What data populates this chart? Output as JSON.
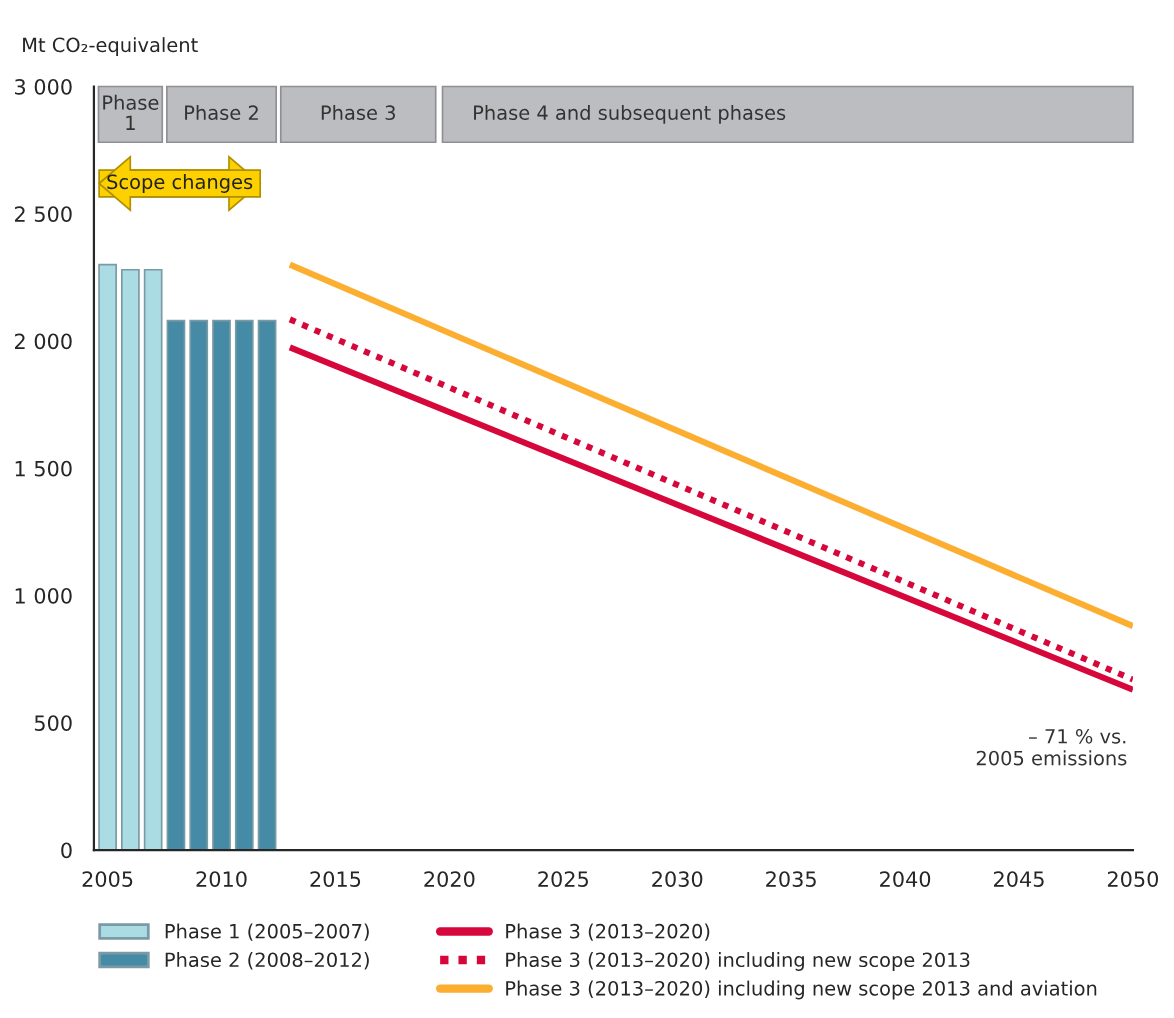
{
  "chart_data": {
    "type": "bar",
    "ylabel": "Mt CO₂-equivalent",
    "xlim": [
      2004.4,
      2050
    ],
    "xticks": [
      2005,
      2010,
      2015,
      2020,
      2025,
      2030,
      2035,
      2040,
      2045,
      2050
    ],
    "ylim": [
      0,
      3000
    ],
    "yticks": [
      0,
      {
        "value": 500,
        "label": "500"
      },
      {
        "value": 1000,
        "label": "1 000"
      },
      {
        "value": 1500,
        "label": "1 500"
      },
      {
        "value": 2000,
        "label": "2 000"
      },
      {
        "value": 2500,
        "label": "2 500"
      },
      {
        "value": 3000,
        "label": "3 000"
      }
    ],
    "series": [
      {
        "name": "Phase 1 (2005–2007)",
        "color": "#abdbe3",
        "x": [
          2005,
          2006,
          2007
        ],
        "values": [
          2300,
          2280,
          2280
        ]
      },
      {
        "name": "Phase 2 (2008–2012)",
        "color": "#468ba5",
        "x": [
          2008,
          2009,
          2010,
          2011,
          2012
        ],
        "values": [
          2080,
          2080,
          2080,
          2080,
          2080
        ]
      },
      {
        "name": "Phase 3 (2013–2020)",
        "type": "line",
        "line_style": "solid",
        "color": "#d6083b",
        "x": [
          2013,
          2050
        ],
        "values": [
          1975,
          630
        ]
      },
      {
        "name": "Phase 3 (2013–2020) including new scope 2013",
        "type": "line",
        "line_style": "dotted",
        "color": "#d6083b",
        "x": [
          2013,
          2050
        ],
        "values": [
          2085,
          670
        ]
      },
      {
        "name": "Phase 3 (2013–2020) including new scope 2013 and aviation",
        "type": "line",
        "line_style": "solid",
        "color": "#fbae30",
        "x": [
          2013,
          2050
        ],
        "values": [
          2300,
          880
        ]
      }
    ],
    "bands": [
      {
        "axis": "x",
        "from": 2004.6,
        "to": 2007.4,
        "label": "Phase\n1",
        "color": "#bcbdc1"
      },
      {
        "axis": "x",
        "from": 2007.6,
        "to": 2012.4,
        "label": "Phase 2",
        "color": "#bcbdc1"
      },
      {
        "axis": "x",
        "from": 2012.6,
        "to": 2019.4,
        "label": "Phase 3",
        "color": "#bcbdc1"
      },
      {
        "axis": "x",
        "from": 2019.7,
        "to": 2050,
        "label": "Phase 4 and subsequent phases",
        "color": "#bcbdc1"
      }
    ],
    "annotations": [
      "Scope changes",
      {
        "text": "– 71 % vs.\n2005 emissions",
        "x": 2050,
        "y": 630
      }
    ],
    "legend": "bottom",
    "grid": false
  }
}
